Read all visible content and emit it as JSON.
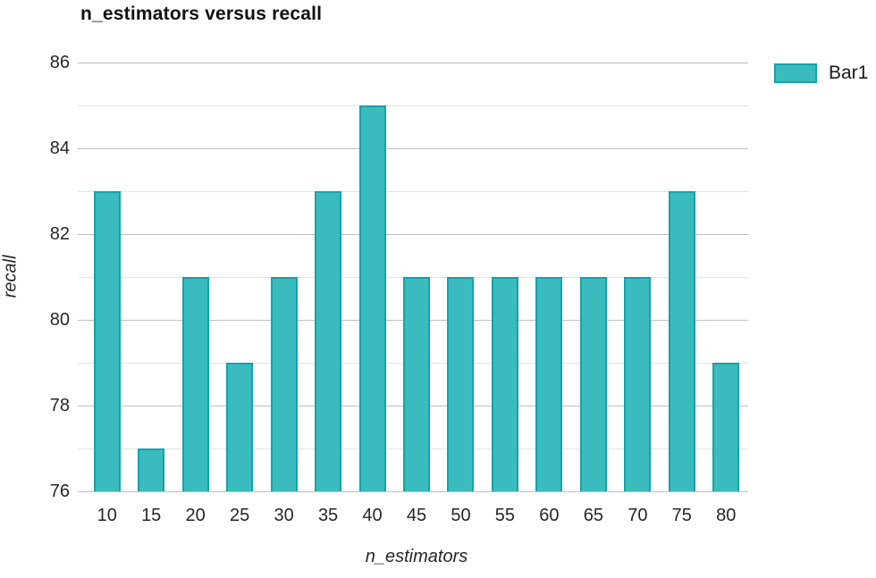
{
  "chart_data": {
    "type": "bar",
    "title": "n_estimators versus recall",
    "xlabel": "n_estimators",
    "ylabel": "recall",
    "categories": [
      "10",
      "15",
      "20",
      "25",
      "30",
      "35",
      "40",
      "45",
      "50",
      "55",
      "60",
      "65",
      "70",
      "75",
      "80"
    ],
    "values": [
      83,
      77,
      81,
      79,
      81,
      83,
      85,
      81,
      81,
      81,
      81,
      81,
      81,
      83,
      79
    ],
    "ylim": [
      76,
      86
    ],
    "yticks": [
      76,
      78,
      80,
      82,
      84,
      86
    ],
    "minor_gridline_step": 1,
    "grid": "horizontal",
    "legend": {
      "position": "top-right-outside",
      "entries": [
        {
          "label": "Bar1"
        }
      ]
    },
    "colors": {
      "bar_fill": "#3abcbe",
      "bar_border": "#14a3ab",
      "major_gridline": "#bfbfbf",
      "minor_gridline": "#e3e3e3",
      "text": "#262626"
    }
  }
}
